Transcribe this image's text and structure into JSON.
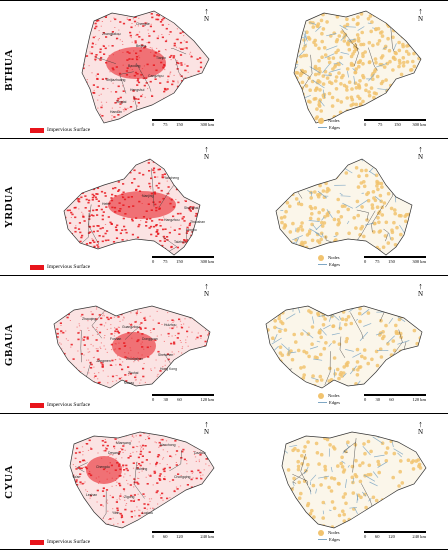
{
  "regions": [
    {
      "code": "BTHUA",
      "impervious_label": "Impervious Surface",
      "nodes_label": "Nodes",
      "edges_label": "Edges",
      "scale_left": [
        "0",
        "75",
        "150",
        "",
        "300 km"
      ],
      "scale_right": [
        "0",
        "75",
        "150",
        "300 km"
      ],
      "cities": [
        "Chengde",
        "Zhangjiakou",
        "Beijing",
        "Tianjin",
        "Baoding",
        "Cangzhou",
        "Shijiazhuang",
        "Hengshui",
        "Xingtai",
        "Handan"
      ]
    },
    {
      "code": "YRDUA",
      "impervious_label": "Impervious Surface",
      "nodes_label": "Nodes",
      "edges_label": "Edges",
      "scale_left": [
        "0",
        "75",
        "150",
        "",
        "300 km"
      ],
      "scale_right": [
        "0",
        "75",
        "150",
        "",
        "300 km"
      ],
      "cities": [
        "Yancheng",
        "Hefei",
        "Nanjing",
        "Shanghai",
        "Hangzhou",
        "Zhoushan",
        "Ningbo",
        "Taizhou"
      ]
    },
    {
      "code": "GBAUA",
      "impervious_label": "Impervious Surface",
      "nodes_label": "Nodes",
      "edges_label": "Edges",
      "scale_left": [
        "0",
        "30",
        "60",
        "",
        "120 km"
      ],
      "scale_right": [
        "0",
        "30",
        "60",
        "",
        "120 km"
      ],
      "cities": [
        "Zhaoqing",
        "Guangzhou",
        "Huizhou",
        "Foshan",
        "Dongguan",
        "Shenzhen",
        "Jiangmen",
        "Zhongshan",
        "Zhuhai",
        "Hong Kong",
        "Macao"
      ]
    },
    {
      "code": "CYUA",
      "impervious_label": "Impervious Surface",
      "nodes_label": "Nodes",
      "edges_label": "Edges",
      "scale_left": [
        "0",
        "60",
        "120",
        "",
        "240 km"
      ],
      "scale_right": [
        "0",
        "60",
        "120",
        "",
        "240 km"
      ],
      "cities": [
        "Mianyang",
        "Deyang",
        "Nanchong",
        "Chengdu",
        "Dazhou",
        "Suining",
        "Ya'an",
        "Chongqing",
        "Leshan",
        "Zigong",
        "Yibin",
        "Luzhou"
      ]
    }
  ],
  "north_label": "N",
  "colors": {
    "impervious": "#e8141b",
    "nodes": "#f1c36f",
    "edges": "#7fa7c4",
    "boundary": "#333333"
  }
}
